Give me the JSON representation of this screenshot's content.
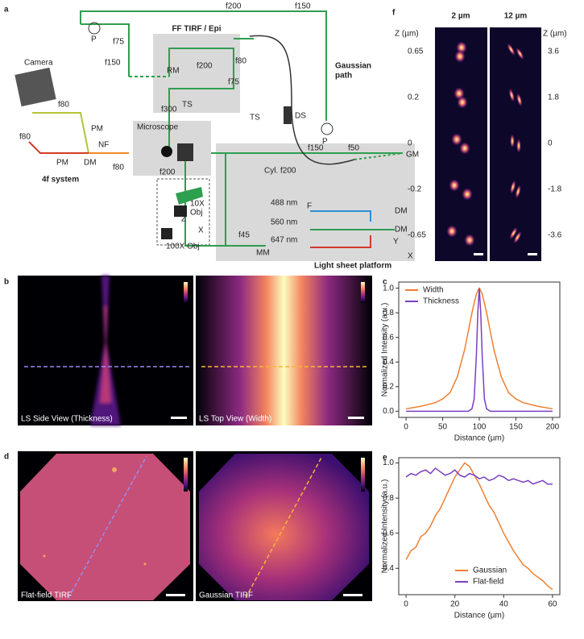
{
  "figure": {
    "panel_a": {
      "labels": [
        "a",
        "P",
        "f75",
        "f200",
        "f150",
        "FF TIRF / Epi",
        "f80",
        "Gaussian",
        "path",
        "f150",
        "RM",
        "f200",
        "f75",
        "Camera",
        "f80",
        "PM",
        "f80",
        "PM",
        "DM",
        "NF",
        "f80",
        "4f system",
        "f300",
        "TS",
        "TS",
        "DS",
        "P",
        "Microscope",
        "f150",
        "f50",
        "GM",
        "f200",
        "Cyl. f200",
        "F",
        "488 nm",
        "560 nm",
        "647 nm",
        "DM",
        "DM",
        "10X",
        "Obj",
        "100X Obj",
        "Z",
        "X",
        "f45",
        "MM",
        "Light sheet platform",
        "Y",
        "X"
      ]
    },
    "panel_b": {
      "label": "b",
      "captions": [
        "LS Side View (Thickness)",
        "LS Top View (Width)"
      ]
    },
    "panel_d": {
      "label": "d",
      "captions": [
        "Flat-field TIRF",
        "Gaussian TIRF"
      ]
    },
    "panel_f": {
      "label": "f",
      "columns": [
        "2 µm",
        "12 µm"
      ],
      "axis_titles": [
        "Z (µm)",
        "Z (µm)"
      ],
      "left_z": [
        "0.65",
        "0.2",
        "0",
        "-0.2",
        "-0.65"
      ],
      "right_z": [
        "3.6",
        "1.8",
        "0",
        "-1.8",
        "-3.6"
      ]
    }
  },
  "chart_data": [
    {
      "type": "line",
      "panel_label": "c",
      "xlabel": "Distance (µm)",
      "ylabel": "Normalized Intensity (a.u.)",
      "legend": "upper left",
      "x": [
        0,
        20,
        40,
        50,
        60,
        70,
        80,
        85,
        90,
        93,
        96,
        98,
        100,
        102,
        104,
        107,
        110,
        115,
        120,
        130,
        140,
        150,
        160,
        180,
        200
      ],
      "series": [
        {
          "name": "Width",
          "color": "#f07f32",
          "values": [
            0.02,
            0.04,
            0.07,
            0.1,
            0.15,
            0.28,
            0.5,
            0.65,
            0.8,
            0.88,
            0.95,
            0.98,
            1.0,
            0.98,
            0.95,
            0.88,
            0.8,
            0.65,
            0.5,
            0.28,
            0.15,
            0.1,
            0.07,
            0.04,
            0.02
          ]
        },
        {
          "name": "Thickness",
          "color": "#7b3fbf",
          "values": [
            0,
            0,
            0,
            0,
            0,
            0,
            0,
            0,
            0.02,
            0.1,
            0.45,
            0.8,
            1.0,
            0.8,
            0.45,
            0.1,
            0.02,
            0,
            0,
            0,
            0,
            0,
            0,
            0,
            0
          ]
        }
      ],
      "xlim": [
        -10,
        210
      ],
      "xticks": [
        0,
        50,
        100,
        150,
        200
      ],
      "ylim": [
        -0.05,
        1.05
      ],
      "yticks": [
        {
          "value": 0,
          "label": "0.0"
        },
        0.2,
        0.4,
        0.6,
        0.8,
        {
          "value": 1,
          "label": "1.0"
        }
      ]
    },
    {
      "type": "line",
      "panel_label": "e",
      "xlabel": "Distance (µm)",
      "ylabel": "Normalized Intensity (a.u.)",
      "legend": "lower center",
      "x": [
        0,
        2,
        4,
        6,
        8,
        10,
        12,
        14,
        16,
        18,
        20,
        22,
        24,
        26,
        28,
        30,
        32,
        34,
        36,
        38,
        40,
        42,
        44,
        46,
        48,
        50,
        52,
        54,
        56,
        58,
        60
      ],
      "series": [
        {
          "name": "Gaussian",
          "color": "#f07f32",
          "values": [
            0.45,
            0.5,
            0.52,
            0.58,
            0.6,
            0.64,
            0.7,
            0.74,
            0.8,
            0.86,
            0.92,
            0.96,
            1.0,
            0.98,
            0.93,
            0.88,
            0.82,
            0.76,
            0.72,
            0.66,
            0.6,
            0.55,
            0.5,
            0.46,
            0.42,
            0.4,
            0.37,
            0.35,
            0.33,
            0.3,
            0.28
          ]
        },
        {
          "name": "Flat-field",
          "color": "#7b3fbf",
          "values": [
            0.92,
            0.94,
            0.93,
            0.95,
            0.96,
            0.94,
            0.97,
            0.95,
            0.93,
            0.94,
            0.96,
            0.93,
            0.92,
            0.94,
            0.93,
            0.91,
            0.92,
            0.9,
            0.91,
            0.93,
            0.92,
            0.9,
            0.91,
            0.9,
            0.89,
            0.9,
            0.88,
            0.89,
            0.9,
            0.88,
            0.88
          ]
        }
      ],
      "xlim": [
        -3,
        63
      ],
      "xticks": [
        0,
        20,
        40,
        60
      ],
      "ylim": [
        0.25,
        1.03
      ],
      "yticks": [
        0.4,
        0.6,
        0.8,
        {
          "value": 1,
          "label": "1.0"
        }
      ]
    }
  ]
}
